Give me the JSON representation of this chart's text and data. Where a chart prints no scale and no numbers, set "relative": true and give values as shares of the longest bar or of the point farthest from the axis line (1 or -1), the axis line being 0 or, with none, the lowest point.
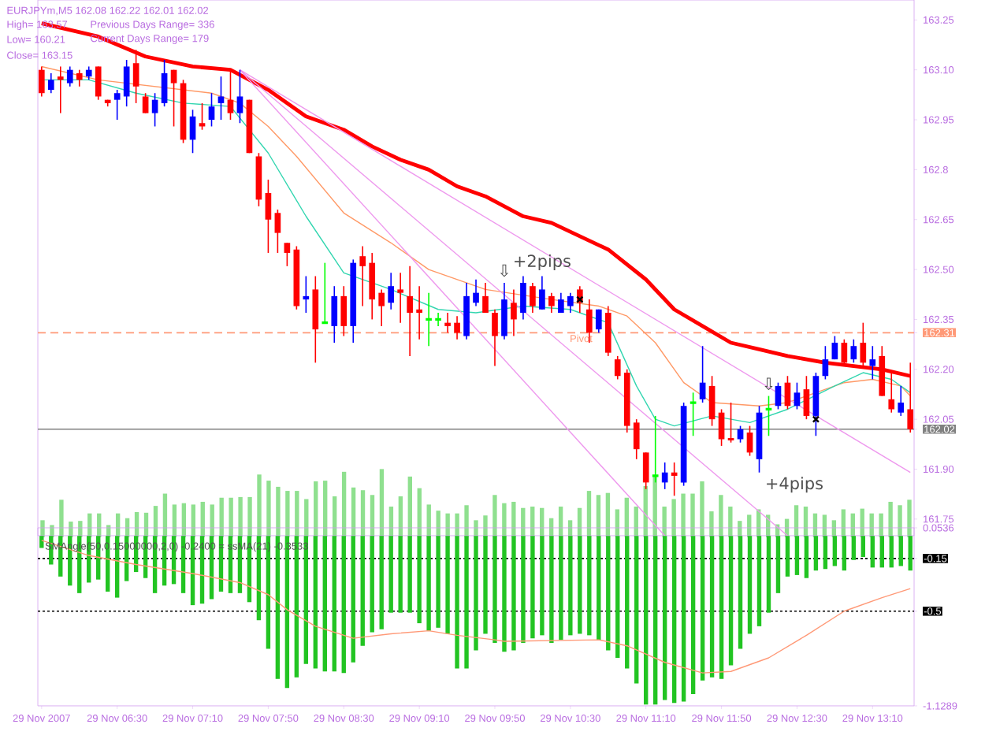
{
  "chart_data": [
    {
      "type": "candlestick",
      "x": [
        "2007-11-29T05:50",
        "2007-11-29T05:55",
        "2007-11-29T06:00",
        "2007-11-29T06:05",
        "2007-11-29T06:10",
        "2007-11-29T06:15",
        "2007-11-29T06:20",
        "2007-11-29T06:25",
        "2007-11-29T06:30",
        "2007-11-29T06:35",
        "2007-11-29T06:40",
        "2007-11-29T06:45",
        "2007-11-29T06:50",
        "2007-11-29T06:55",
        "2007-11-29T07:00",
        "2007-11-29T07:05",
        "2007-11-29T07:10",
        "2007-11-29T07:15",
        "2007-11-29T07:20",
        "2007-11-29T07:25",
        "2007-11-29T07:30",
        "2007-11-29T07:35",
        "2007-11-29T07:40",
        "2007-11-29T07:45",
        "2007-11-29T07:50",
        "2007-11-29T07:55",
        "2007-11-29T08:00",
        "2007-11-29T08:05",
        "2007-11-29T08:10",
        "2007-11-29T08:15",
        "2007-11-29T08:20",
        "2007-11-29T08:25",
        "2007-11-29T08:30",
        "2007-11-29T08:35",
        "2007-11-29T08:40",
        "2007-11-29T08:45",
        "2007-11-29T08:50",
        "2007-11-29T08:55",
        "2007-11-29T09:00",
        "2007-11-29T09:05",
        "2007-11-29T09:10",
        "2007-11-29T09:15",
        "2007-11-29T09:20",
        "2007-11-29T09:25",
        "2007-11-29T09:30",
        "2007-11-29T09:35",
        "2007-11-29T09:40",
        "2007-11-29T09:45",
        "2007-11-29T09:50",
        "2007-11-29T09:55",
        "2007-11-29T10:00",
        "2007-11-29T10:05",
        "2007-11-29T10:10",
        "2007-11-29T10:15",
        "2007-11-29T10:20",
        "2007-11-29T10:25",
        "2007-11-29T10:30",
        "2007-11-29T10:35",
        "2007-11-29T10:40",
        "2007-11-29T10:45",
        "2007-11-29T10:50",
        "2007-11-29T10:55",
        "2007-11-29T11:00",
        "2007-11-29T11:05",
        "2007-11-29T11:10",
        "2007-11-29T11:15",
        "2007-11-29T11:20",
        "2007-11-29T11:25",
        "2007-11-29T11:30",
        "2007-11-29T11:35",
        "2007-11-29T11:40",
        "2007-11-29T11:45",
        "2007-11-29T11:50",
        "2007-11-29T11:55",
        "2007-11-29T12:00",
        "2007-11-29T12:05",
        "2007-11-29T12:10",
        "2007-11-29T12:15",
        "2007-11-29T12:20",
        "2007-11-29T12:25",
        "2007-11-29T12:30",
        "2007-11-29T12:35",
        "2007-11-29T12:40",
        "2007-11-29T12:45",
        "2007-11-29T12:50",
        "2007-11-29T12:55",
        "2007-11-29T13:00",
        "2007-11-29T13:05",
        "2007-11-29T13:10",
        "2007-11-29T13:15",
        "2007-11-29T13:20",
        "2007-11-29T13:25",
        "2007-11-29T13:30"
      ],
      "ohlc": [
        [
          163.1,
          163.11,
          163.02,
          163.03
        ],
        [
          163.04,
          163.09,
          163.03,
          163.07
        ],
        [
          163.08,
          163.11,
          162.97,
          163.07
        ],
        [
          163.06,
          163.11,
          163.05,
          163.1
        ],
        [
          163.09,
          163.1,
          163.05,
          163.07
        ],
        [
          163.08,
          163.11,
          163.07,
          163.1
        ],
        [
          163.11,
          163.11,
          163.01,
          163.02
        ],
        [
          163.01,
          163.01,
          162.99,
          163.0
        ],
        [
          163.01,
          163.04,
          162.95,
          163.03
        ],
        [
          163.02,
          163.13,
          162.99,
          163.11
        ],
        [
          163.12,
          163.16,
          163.0,
          163.05
        ],
        [
          163.02,
          163.03,
          162.97,
          162.97
        ],
        [
          162.97,
          163.03,
          162.93,
          163.01
        ],
        [
          163.0,
          163.13,
          162.99,
          163.09
        ],
        [
          163.1,
          163.1,
          162.93,
          163.06
        ],
        [
          163.06,
          163.07,
          162.88,
          162.89
        ],
        [
          162.89,
          162.98,
          162.85,
          162.96
        ],
        [
          162.94,
          163.0,
          162.92,
          162.93
        ],
        [
          162.95,
          163.03,
          162.93,
          162.99
        ],
        [
          163.0,
          163.08,
          162.95,
          163.02
        ],
        [
          163.01,
          163.1,
          162.95,
          162.97
        ],
        [
          162.97,
          163.1,
          162.94,
          163.02
        ],
        [
          163.01,
          163.01,
          162.85,
          162.85
        ],
        [
          162.84,
          162.85,
          162.69,
          162.71
        ],
        [
          162.73,
          162.77,
          162.55,
          162.65
        ],
        [
          162.67,
          162.68,
          162.55,
          162.61
        ],
        [
          162.58,
          162.58,
          162.51,
          162.55
        ],
        [
          162.56,
          162.57,
          162.38,
          162.39
        ],
        [
          162.41,
          162.48,
          162.37,
          162.42
        ],
        [
          162.44,
          162.48,
          162.22,
          162.32
        ],
        [
          162.34,
          162.52,
          162.34,
          162.34
        ],
        [
          162.33,
          162.45,
          162.28,
          162.42
        ],
        [
          162.42,
          162.45,
          162.3,
          162.33
        ],
        [
          162.33,
          162.53,
          162.28,
          162.52
        ],
        [
          162.54,
          162.57,
          162.39,
          162.51
        ],
        [
          162.52,
          162.55,
          162.35,
          162.41
        ],
        [
          162.43,
          162.44,
          162.33,
          162.39
        ],
        [
          162.4,
          162.49,
          162.38,
          162.45
        ],
        [
          162.44,
          162.49,
          162.34,
          162.43
        ],
        [
          162.42,
          162.51,
          162.24,
          162.37
        ],
        [
          162.38,
          162.45,
          162.29,
          162.37
        ],
        [
          162.35,
          162.43,
          162.27,
          162.35
        ],
        [
          162.35,
          162.37,
          162.33,
          162.35
        ],
        [
          162.34,
          162.37,
          162.31,
          162.33
        ],
        [
          162.34,
          162.36,
          162.29,
          162.31
        ],
        [
          162.3,
          162.46,
          162.29,
          162.42
        ],
        [
          162.4,
          162.47,
          162.39,
          162.43
        ],
        [
          162.42,
          162.46,
          162.37,
          162.37
        ],
        [
          162.37,
          162.38,
          162.21,
          162.3
        ],
        [
          162.3,
          162.46,
          162.29,
          162.41
        ],
        [
          162.4,
          162.44,
          162.3,
          162.35
        ],
        [
          162.37,
          162.48,
          162.35,
          162.46
        ],
        [
          162.45,
          162.46,
          162.37,
          162.39
        ],
        [
          162.38,
          162.48,
          162.38,
          162.44
        ],
        [
          162.42,
          162.43,
          162.37,
          162.39
        ],
        [
          162.37,
          162.43,
          162.37,
          162.41
        ],
        [
          162.39,
          162.43,
          162.37,
          162.42
        ],
        [
          162.44,
          162.45,
          162.37,
          162.4
        ],
        [
          162.38,
          162.41,
          162.28,
          162.31
        ],
        [
          162.32,
          162.38,
          162.31,
          162.38
        ],
        [
          162.37,
          162.39,
          162.24,
          162.25
        ],
        [
          162.23,
          162.24,
          162.17,
          162.18
        ],
        [
          162.19,
          162.2,
          162.01,
          162.03
        ],
        [
          162.04,
          162.05,
          161.93,
          161.96
        ],
        [
          161.95,
          161.95,
          161.84,
          161.86
        ],
        [
          161.88,
          162.06,
          161.86,
          161.88
        ],
        [
          161.86,
          161.92,
          161.84,
          161.89
        ],
        [
          161.89,
          161.92,
          161.82,
          161.88
        ],
        [
          161.86,
          162.1,
          161.85,
          162.09
        ],
        [
          162.1,
          162.13,
          162.0,
          162.1
        ],
        [
          162.11,
          162.27,
          162.1,
          162.16
        ],
        [
          162.15,
          162.18,
          162.03,
          162.05
        ],
        [
          162.07,
          162.08,
          161.97,
          161.99
        ],
        [
          161.99,
          162.1,
          161.98,
          161.99
        ],
        [
          161.99,
          162.03,
          161.98,
          162.02
        ],
        [
          162.01,
          162.03,
          161.94,
          161.95
        ],
        [
          161.93,
          162.09,
          161.89,
          162.07
        ],
        [
          162.08,
          162.12,
          162.0,
          162.08
        ],
        [
          162.09,
          162.16,
          162.08,
          162.15
        ],
        [
          162.16,
          162.18,
          162.08,
          162.09
        ],
        [
          162.09,
          162.16,
          162.08,
          162.13
        ],
        [
          162.14,
          162.18,
          162.05,
          162.06
        ],
        [
          162.06,
          162.19,
          162.0,
          162.18
        ],
        [
          162.18,
          162.27,
          162.17,
          162.23
        ],
        [
          162.23,
          162.3,
          162.23,
          162.28
        ],
        [
          162.28,
          162.29,
          162.21,
          162.22
        ],
        [
          162.23,
          162.29,
          162.22,
          162.27
        ],
        [
          162.28,
          162.34,
          162.21,
          162.22
        ],
        [
          162.21,
          162.27,
          162.17,
          162.23
        ],
        [
          162.24,
          162.27,
          162.12,
          162.12
        ],
        [
          162.11,
          162.19,
          162.07,
          162.08
        ],
        [
          162.07,
          162.15,
          162.06,
          162.1
        ],
        [
          162.08,
          162.22,
          162.01,
          162.02
        ]
      ],
      "colors": [
        "#ff0000",
        "#0000ff",
        "#ff0000",
        "#0000ff",
        "#ff0000",
        "#0000ff",
        "#ff0000",
        "#ff0000",
        "#0000ff",
        "#0000ff",
        "#ff0000",
        "#ff0000",
        "#0000ff",
        "#0000ff",
        "#ff0000",
        "#ff0000",
        "#0000ff",
        "#ff0000",
        "#0000ff",
        "#0000ff",
        "#ff0000",
        "#0000ff",
        "#ff0000",
        "#ff0000",
        "#ff0000",
        "#ff0000",
        "#ff0000",
        "#ff0000",
        "#0000ff",
        "#ff0000",
        "#00ff00",
        "#0000ff",
        "#ff0000",
        "#0000ff",
        "#ff0000",
        "#ff0000",
        "#ff0000",
        "#0000ff",
        "#ff0000",
        "#ff0000",
        "#ff0000",
        "#00ff00",
        "#00ff00",
        "#ff0000",
        "#ff0000",
        "#0000ff",
        "#0000ff",
        "#ff0000",
        "#ff0000",
        "#0000ff",
        "#ff0000",
        "#0000ff",
        "#ff0000",
        "#0000ff",
        "#ff0000",
        "#0000ff",
        "#0000ff",
        "#ff0000",
        "#ff0000",
        "#0000ff",
        "#ff0000",
        "#ff0000",
        "#ff0000",
        "#ff0000",
        "#ff0000",
        "#00ff00",
        "#0000ff",
        "#ff0000",
        "#0000ff",
        "#00ff00",
        "#0000ff",
        "#ff0000",
        "#ff0000",
        "#ff0000",
        "#0000ff",
        "#ff0000",
        "#0000ff",
        "#00ff00",
        "#0000ff",
        "#ff0000",
        "#0000ff",
        "#ff0000",
        "#0000ff",
        "#0000ff",
        "#0000ff",
        "#ff0000",
        "#0000ff",
        "#ff0000",
        "#0000ff",
        "#ff0000",
        "#ff0000",
        "#0000ff",
        "#ff0000"
      ],
      "series": [
        {
          "type": "line",
          "color": "#ff0000",
          "x": [
            "2007-11-29T05:50",
            "2007-11-29T06:20",
            "2007-11-29T06:45",
            "2007-11-29T07:10",
            "2007-11-29T07:30",
            "2007-11-29T07:50",
            "2007-11-29T08:10",
            "2007-11-29T08:30",
            "2007-11-29T08:45",
            "2007-11-29T09:00",
            "2007-11-29T09:15",
            "2007-11-29T09:30",
            "2007-11-29T09:45",
            "2007-11-29T10:05",
            "2007-11-29T10:20",
            "2007-11-29T10:35",
            "2007-11-29T10:50",
            "2007-11-29T11:10",
            "2007-11-29T11:25",
            "2007-11-29T11:40",
            "2007-11-29T11:55",
            "2007-11-29T12:10",
            "2007-11-29T12:25",
            "2007-11-29T12:45",
            "2007-11-29T13:00",
            "2007-11-29T13:15",
            "2007-11-29T13:30"
          ],
          "values": [
            163.24,
            163.2,
            163.14,
            163.11,
            163.1,
            163.04,
            162.96,
            162.92,
            162.87,
            162.83,
            162.8,
            162.75,
            162.72,
            162.66,
            162.64,
            162.6,
            162.56,
            162.47,
            162.38,
            162.33,
            162.28,
            162.26,
            162.24,
            162.22,
            162.21,
            162.2,
            162.18
          ]
        },
        {
          "type": "line",
          "color": "#ff9966",
          "x": [
            "2007-11-29T05:50",
            "2007-11-29T06:20",
            "2007-11-29T06:50",
            "2007-11-29T07:20",
            "2007-11-29T07:35",
            "2007-11-29T07:50",
            "2007-11-29T08:05",
            "2007-11-29T08:30",
            "2007-11-29T08:55",
            "2007-11-29T09:15",
            "2007-11-29T09:45",
            "2007-11-29T10:20",
            "2007-11-29T10:45",
            "2007-11-29T11:00",
            "2007-11-29T11:15",
            "2007-11-29T11:30",
            "2007-11-29T11:45",
            "2007-11-29T12:10",
            "2007-11-29T12:25",
            "2007-11-29T12:40",
            "2007-11-29T12:55",
            "2007-11-29T13:10",
            "2007-11-29T13:25",
            "2007-11-29T13:30"
          ],
          "values": [
            163.11,
            163.07,
            163.05,
            163.03,
            163.0,
            162.93,
            162.84,
            162.67,
            162.58,
            162.5,
            162.44,
            162.41,
            162.39,
            162.36,
            162.28,
            162.16,
            162.1,
            162.09,
            162.1,
            162.13,
            162.16,
            162.17,
            162.15,
            162.12
          ]
        },
        {
          "type": "line",
          "color": "#33d6b0",
          "x": [
            "2007-11-29T05:50",
            "2007-11-29T06:15",
            "2007-11-29T06:40",
            "2007-11-29T07:05",
            "2007-11-29T07:30",
            "2007-11-29T07:50",
            "2007-11-29T08:10",
            "2007-11-29T08:30",
            "2007-11-29T08:55",
            "2007-11-29T09:20",
            "2007-11-29T09:40",
            "2007-11-29T10:05",
            "2007-11-29T10:30",
            "2007-11-29T10:50",
            "2007-11-29T11:05",
            "2007-11-29T11:15",
            "2007-11-29T11:25",
            "2007-11-29T11:45",
            "2007-11-29T12:05",
            "2007-11-29T12:25",
            "2007-11-29T12:50",
            "2007-11-29T13:05",
            "2007-11-29T13:20",
            "2007-11-29T13:30"
          ],
          "values": [
            163.07,
            163.07,
            163.03,
            163.0,
            162.99,
            162.85,
            162.66,
            162.49,
            162.44,
            162.38,
            162.37,
            162.39,
            162.38,
            162.34,
            162.15,
            162.05,
            162.03,
            162.06,
            162.04,
            162.08,
            162.15,
            162.19,
            162.17,
            162.13
          ]
        },
        {
          "type": "line",
          "color": "#ee99ee",
          "x": [
            "2007-11-29T07:35",
            "2007-11-29T13:30"
          ],
          "values": [
            163.1,
            161.89
          ]
        },
        {
          "type": "line",
          "color": "#ee99ee",
          "x": [
            "2007-11-29T07:35",
            "2007-11-29T12:25"
          ],
          "values": [
            163.1,
            161.7
          ]
        },
        {
          "type": "line",
          "color": "#ee99ee",
          "x": [
            "2007-11-29T07:35",
            "2007-11-29T11:20"
          ],
          "values": [
            163.1,
            161.7
          ]
        },
        {
          "type": "scatter",
          "color": "#000000",
          "marker": "cross",
          "x": [
            "2007-11-29T10:35",
            "2007-11-29T12:40"
          ],
          "values": [
            162.41,
            162.05
          ]
        }
      ],
      "xlim": [
        "2007-11-29T05:48",
        "2007-11-29T13:32"
      ],
      "ylim": [
        161.7,
        163.31
      ],
      "yticks": [
        163.25,
        {
          "value": 163.1,
          "label": "163.10"
        },
        162.95,
        162.8,
        162.65,
        {
          "value": 162.5,
          "label": "162.50"
        },
        162.35,
        {
          "value": 162.2,
          "label": "162.20"
        },
        162.05,
        {
          "value": 161.9,
          "label": "161.90"
        },
        161.75,
        162.31,
        162.02
      ],
      "tick_labels": "y",
      "ref_lines": [
        {
          "axis": "y",
          "value": 162.31,
          "label": "Pivot",
          "color": "#ff9977",
          "line_style": "dashed"
        },
        {
          "axis": "y",
          "value": 162.02,
          "color": "#808080",
          "line_style": "solid"
        }
      ],
      "annotations": [
        "EURJPYm,M5  162.08 162.22 162.01 162.02",
        "High= 163.57",
        "Previous Days Range= 336",
        "Low= 160.21",
        "Current Days Range= 179",
        "Close= 163.15",
        {
          "text": "⇩",
          "x": "2007-11-29T09:55",
          "y": 162.46
        },
        {
          "text": "+2pips",
          "x": "2007-11-29T10:15",
          "y": 162.48
        },
        {
          "text": "⇩",
          "x": "2007-11-29T12:15",
          "y": 162.12
        },
        {
          "text": "+4pips",
          "x": "2007-11-29T12:10",
          "y": 161.89
        }
      ]
    },
    {
      "type": "bar",
      "relative": true,
      "color": "#8fe08f",
      "categories": [
        null,
        null,
        null,
        null,
        null,
        null,
        null,
        null,
        null,
        null,
        null,
        null,
        null,
        null,
        null,
        null,
        null,
        null,
        null,
        null,
        null,
        null,
        null,
        null,
        null,
        null,
        null,
        null,
        null,
        null,
        null,
        null,
        null,
        null,
        null,
        null,
        null,
        null,
        null,
        null,
        null,
        null,
        null,
        null,
        null,
        null,
        null,
        null,
        null,
        null,
        null,
        null,
        null,
        null,
        null,
        null,
        null,
        null,
        null,
        null,
        null,
        null,
        null,
        null,
        null,
        null,
        null,
        null,
        null,
        null,
        null,
        null,
        null,
        null,
        null,
        null,
        null,
        null,
        null,
        null,
        null,
        null,
        null,
        null,
        null,
        null,
        null,
        null,
        null,
        null,
        null,
        null,
        null
      ],
      "values": [
        0.25,
        0.18,
        0.55,
        0.23,
        0.24,
        0.35,
        0.35,
        0.18,
        0.35,
        0.28,
        0.37,
        0.36,
        0.46,
        0.64,
        0.48,
        0.5,
        0.48,
        0.52,
        0.48,
        0.58,
        0.58,
        0.59,
        0.59,
        0.92,
        0.83,
        0.74,
        0.68,
        0.68,
        0.56,
        0.82,
        0.83,
        0.6,
        0.96,
        0.73,
        0.69,
        0.62,
        1,
        0.45,
        0.6,
        0.89,
        0.72,
        0.48,
        0.39,
        0.35,
        0.35,
        0.47,
        0.25,
        0.32,
        0.62,
        0.5,
        0.52,
        0.43,
        0.45,
        0.43,
        0.28,
        0.45,
        0.25,
        0.43,
        0.68,
        0.62,
        0.65,
        0.41,
        0.58,
        0.45,
        0.75,
        0.91,
        0.45,
        0.56,
        0.64,
        0.64,
        0.82,
        0.38,
        0.62,
        0.45,
        0.24,
        0.33,
        0.41,
        0.33,
        0.19,
        0.27,
        0.47,
        0.45,
        0.35,
        0.33,
        0.25,
        0.41,
        0.35,
        0.42,
        0.35,
        0.35,
        0.52,
        0.47,
        0.55
      ]
    },
    {
      "type": "bar",
      "title": "SMAngle(50,0.15000000,2,0) -0.2400 = ssMA(21) -0.3533",
      "color": "#22c422",
      "x": [
        "2007-11-29T05:50",
        "2007-11-29T05:55",
        "2007-11-29T06:00",
        "2007-11-29T06:05",
        "2007-11-29T06:10",
        "2007-11-29T06:15",
        "2007-11-29T06:20",
        "2007-11-29T06:25",
        "2007-11-29T06:30",
        "2007-11-29T06:35",
        "2007-11-29T06:40",
        "2007-11-29T06:45",
        "2007-11-29T06:50",
        "2007-11-29T06:55",
        "2007-11-29T07:00",
        "2007-11-29T07:05",
        "2007-11-29T07:10",
        "2007-11-29T07:15",
        "2007-11-29T07:20",
        "2007-11-29T07:25",
        "2007-11-29T07:30",
        "2007-11-29T07:35",
        "2007-11-29T07:40",
        "2007-11-29T07:45",
        "2007-11-29T07:50",
        "2007-11-29T07:55",
        "2007-11-29T08:00",
        "2007-11-29T08:05",
        "2007-11-29T08:10",
        "2007-11-29T08:15",
        "2007-11-29T08:20",
        "2007-11-29T08:25",
        "2007-11-29T08:30",
        "2007-11-29T08:35",
        "2007-11-29T08:40",
        "2007-11-29T08:45",
        "2007-11-29T08:50",
        "2007-11-29T08:55",
        "2007-11-29T09:00",
        "2007-11-29T09:05",
        "2007-11-29T09:10",
        "2007-11-29T09:15",
        "2007-11-29T09:20",
        "2007-11-29T09:25",
        "2007-11-29T09:30",
        "2007-11-29T09:35",
        "2007-11-29T09:40",
        "2007-11-29T09:45",
        "2007-11-29T09:50",
        "2007-11-29T09:55",
        "2007-11-29T10:00",
        "2007-11-29T10:05",
        "2007-11-29T10:10",
        "2007-11-29T10:15",
        "2007-11-29T10:20",
        "2007-11-29T10:25",
        "2007-11-29T10:30",
        "2007-11-29T10:35",
        "2007-11-29T10:40",
        "2007-11-29T10:45",
        "2007-11-29T10:50",
        "2007-11-29T10:55",
        "2007-11-29T11:00",
        "2007-11-29T11:05",
        "2007-11-29T11:10",
        "2007-11-29T11:15",
        "2007-11-29T11:20",
        "2007-11-29T11:25",
        "2007-11-29T11:30",
        "2007-11-29T11:35",
        "2007-11-29T11:40",
        "2007-11-29T11:45",
        "2007-11-29T11:50",
        "2007-11-29T11:55",
        "2007-11-29T12:00",
        "2007-11-29T12:05",
        "2007-11-29T12:10",
        "2007-11-29T12:15",
        "2007-11-29T12:20",
        "2007-11-29T12:25",
        "2007-11-29T12:30",
        "2007-11-29T12:35",
        "2007-11-29T12:40",
        "2007-11-29T12:45",
        "2007-11-29T12:50",
        "2007-11-29T12:55",
        "2007-11-29T13:00",
        "2007-11-29T13:05",
        "2007-11-29T13:10",
        "2007-11-29T13:15",
        "2007-11-29T13:20",
        "2007-11-29T13:25",
        "2007-11-29T13:30"
      ],
      "values": [
        -0.08,
        -0.19,
        -0.27,
        -0.33,
        -0.38,
        -0.31,
        -0.29,
        -0.37,
        -0.41,
        -0.3,
        -0.24,
        -0.28,
        -0.38,
        -0.33,
        -0.32,
        -0.38,
        -0.46,
        -0.45,
        -0.42,
        -0.37,
        -0.38,
        -0.38,
        -0.44,
        -0.56,
        -0.75,
        -0.95,
        -1.01,
        -0.94,
        -0.85,
        -0.88,
        -0.9,
        -0.9,
        -0.91,
        -0.84,
        -0.73,
        -0.64,
        -0.62,
        -0.51,
        -0.51,
        -0.51,
        -0.58,
        -0.63,
        -0.61,
        -0.65,
        -0.88,
        -0.88,
        -0.76,
        -0.65,
        -0.71,
        -0.77,
        -0.76,
        -0.71,
        -0.68,
        -0.66,
        -0.71,
        -0.69,
        -0.66,
        -0.65,
        -0.66,
        -0.69,
        -0.76,
        -0.81,
        -0.88,
        -0.98,
        -1.12,
        -1.12,
        -1.09,
        -1.11,
        -1.1,
        -1.05,
        -0.96,
        -0.94,
        -0.95,
        -0.86,
        -0.75,
        -0.65,
        -0.6,
        -0.51,
        -0.38,
        -0.27,
        -0.26,
        -0.28,
        -0.23,
        -0.22,
        -0.2,
        -0.23,
        -0.16,
        -0.14,
        -0.21,
        -0.21,
        -0.21,
        -0.2,
        -0.23
      ],
      "series": [
        {
          "type": "line",
          "color": "#ff9977",
          "x": [
            "2007-11-29T05:50",
            "2007-11-29T06:15",
            "2007-11-29T06:40",
            "2007-11-29T07:10",
            "2007-11-29T07:35",
            "2007-11-29T07:50",
            "2007-11-29T08:00",
            "2007-11-29T08:15",
            "2007-11-29T08:35",
            "2007-11-29T08:55",
            "2007-11-29T09:15",
            "2007-11-29T09:30",
            "2007-11-29T09:50",
            "2007-11-29T09:55",
            "2007-11-29T10:45",
            "2007-11-29T11:00",
            "2007-11-29T11:20",
            "2007-11-29T11:40",
            "2007-11-29T11:55",
            "2007-11-29T12:15",
            "2007-11-29T12:35",
            "2007-11-29T12:55",
            "2007-11-29T13:15",
            "2007-11-29T13:30"
          ],
          "values": [
            -0.03,
            -0.13,
            -0.19,
            -0.25,
            -0.31,
            -0.39,
            -0.49,
            -0.6,
            -0.68,
            -0.65,
            -0.63,
            -0.66,
            -0.69,
            -0.7,
            -0.69,
            -0.73,
            -0.84,
            -0.91,
            -0.9,
            -0.81,
            -0.66,
            -0.5,
            -0.41,
            -0.35
          ]
        }
      ],
      "xlim": [
        "2007-11-29T05:48",
        "2007-11-29T13:32"
      ],
      "ylim": [
        -1.1289,
        0.0536
      ],
      "xticks": [
        {
          "value": "2007-11-29T05:50",
          "label": "29 Nov 2007"
        },
        {
          "value": "2007-11-29T06:30",
          "label": "29 Nov 06:30"
        },
        {
          "value": "2007-11-29T07:10",
          "label": "29 Nov 07:10"
        },
        {
          "value": "2007-11-29T07:50",
          "label": "29 Nov 07:50"
        },
        {
          "value": "2007-11-29T08:30",
          "label": "29 Nov 08:30"
        },
        {
          "value": "2007-11-29T09:10",
          "label": "29 Nov 09:10"
        },
        {
          "value": "2007-11-29T09:50",
          "label": "29 Nov 09:50"
        },
        {
          "value": "2007-11-29T10:30",
          "label": "29 Nov 10:30"
        },
        {
          "value": "2007-11-29T11:10",
          "label": "29 Nov 11:10"
        },
        {
          "value": "2007-11-29T11:50",
          "label": "29 Nov 11:50"
        },
        {
          "value": "2007-11-29T12:30",
          "label": "29 Nov 12:30"
        },
        {
          "value": "2007-11-29T13:10",
          "label": "29 Nov 13:10"
        }
      ],
      "yticks": [
        0.0536,
        -0.15,
        -0.5,
        -1.1289
      ],
      "ref_lines": [
        {
          "axis": "y",
          "value": -0.15,
          "color": "#000000",
          "line_style": "dotted"
        },
        {
          "axis": "y",
          "value": -0.5,
          "color": "#000000",
          "line_style": "dotted"
        }
      ]
    }
  ]
}
